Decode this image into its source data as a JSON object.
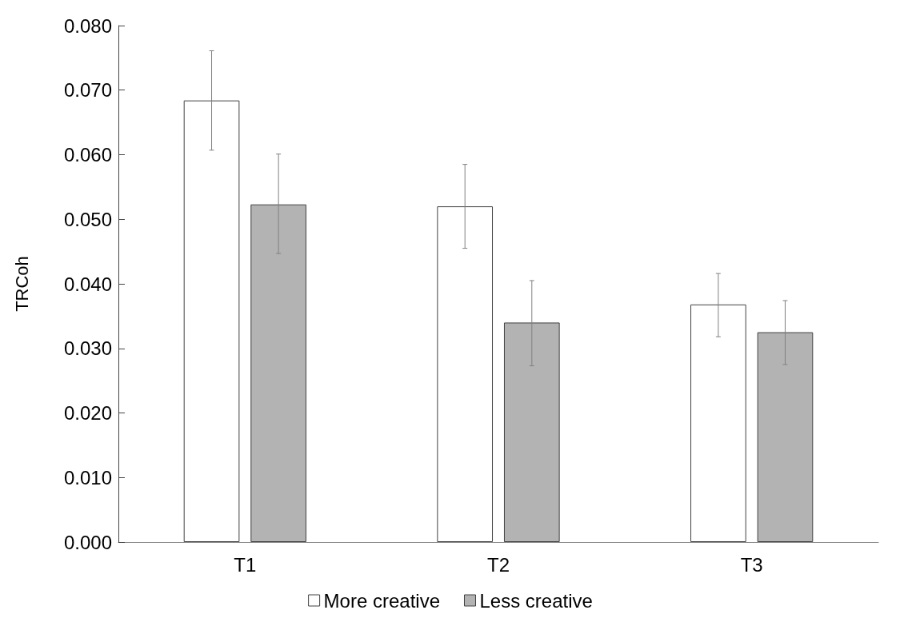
{
  "chart_data": {
    "type": "bar",
    "ylabel": "TRCoh",
    "categories": [
      "T1",
      "T2",
      "T3"
    ],
    "series": [
      {
        "name": "More creative",
        "color": "#ffffff",
        "values": [
          0.0684,
          0.052,
          0.0368
        ],
        "errors": [
          [
            0.0607,
            0.0761
          ],
          [
            0.0455,
            0.0585
          ],
          [
            0.0318,
            0.0416
          ]
        ]
      },
      {
        "name": "Less creative",
        "color": "#b3b3b3",
        "values": [
          0.0523,
          0.034,
          0.0325
        ],
        "errors": [
          [
            0.0447,
            0.0601
          ],
          [
            0.0273,
            0.0405
          ],
          [
            0.0275,
            0.0374
          ]
        ]
      }
    ],
    "ylim": [
      0,
      0.08
    ],
    "yticks": [
      {
        "value": 0,
        "label": "0.000"
      },
      {
        "value": 0.01,
        "label": "0.010"
      },
      {
        "value": 0.02,
        "label": "0.020"
      },
      {
        "value": 0.03,
        "label": "0.030"
      },
      {
        "value": 0.04,
        "label": "0.040"
      },
      {
        "value": 0.05,
        "label": "0.050"
      },
      {
        "value": 0.06,
        "label": "0.060"
      },
      {
        "value": 0.07,
        "label": "0.070"
      },
      {
        "value": 0.08,
        "label": "0.080"
      }
    ],
    "grid": false,
    "legend": "bottom"
  }
}
